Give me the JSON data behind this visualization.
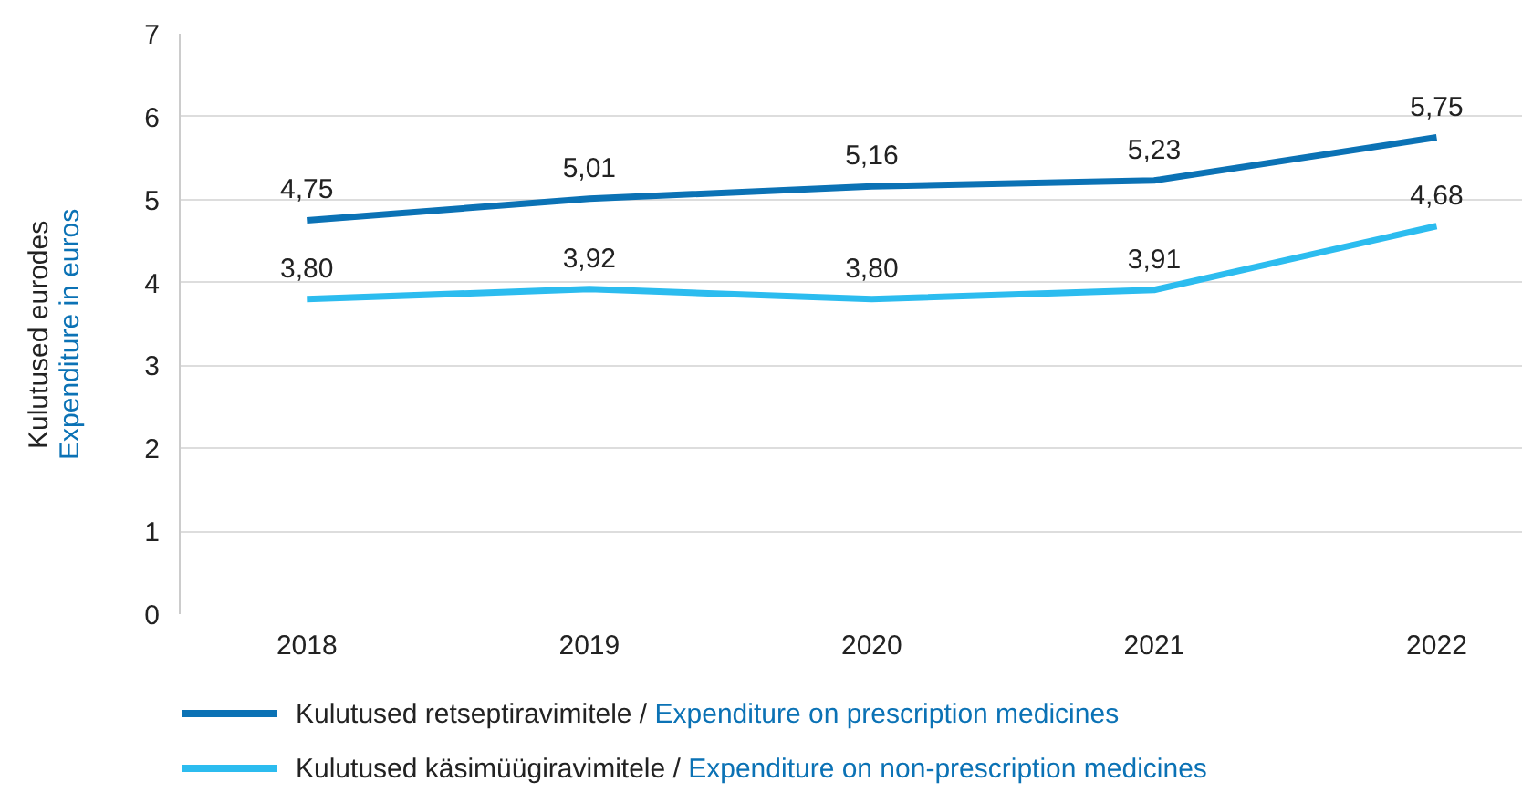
{
  "chart_data": {
    "type": "line",
    "ylabel": "Kulutused eurodes\nExpenditure in euros",
    "categories": [
      "2018",
      "2019",
      "2020",
      "2021",
      "2022"
    ],
    "series": [
      {
        "name": "Kulutused retseptiravimitele / Expenditure on prescription medicines",
        "color": "#0b72b5",
        "values": [
          4.75,
          5.01,
          5.16,
          5.23,
          5.75
        ],
        "value_labels": [
          "4,75",
          "5,01",
          "5,16",
          "5,23",
          "5,75"
        ]
      },
      {
        "name": "Kulutused käsimüügiravimitele / Expenditure on non-prescription medicines",
        "color": "#2cbcef",
        "values": [
          3.8,
          3.92,
          3.8,
          3.91,
          4.68
        ],
        "value_labels": [
          "3,80",
          "3,92",
          "3,80",
          "3,91",
          "4,68"
        ]
      }
    ],
    "ylim": [
      0,
      7
    ],
    "yticks": [
      0,
      1,
      2,
      3,
      4,
      5,
      6,
      7
    ],
    "grid": "y",
    "legend": "bottom",
    "marker": "none",
    "line_style": "solid"
  }
}
